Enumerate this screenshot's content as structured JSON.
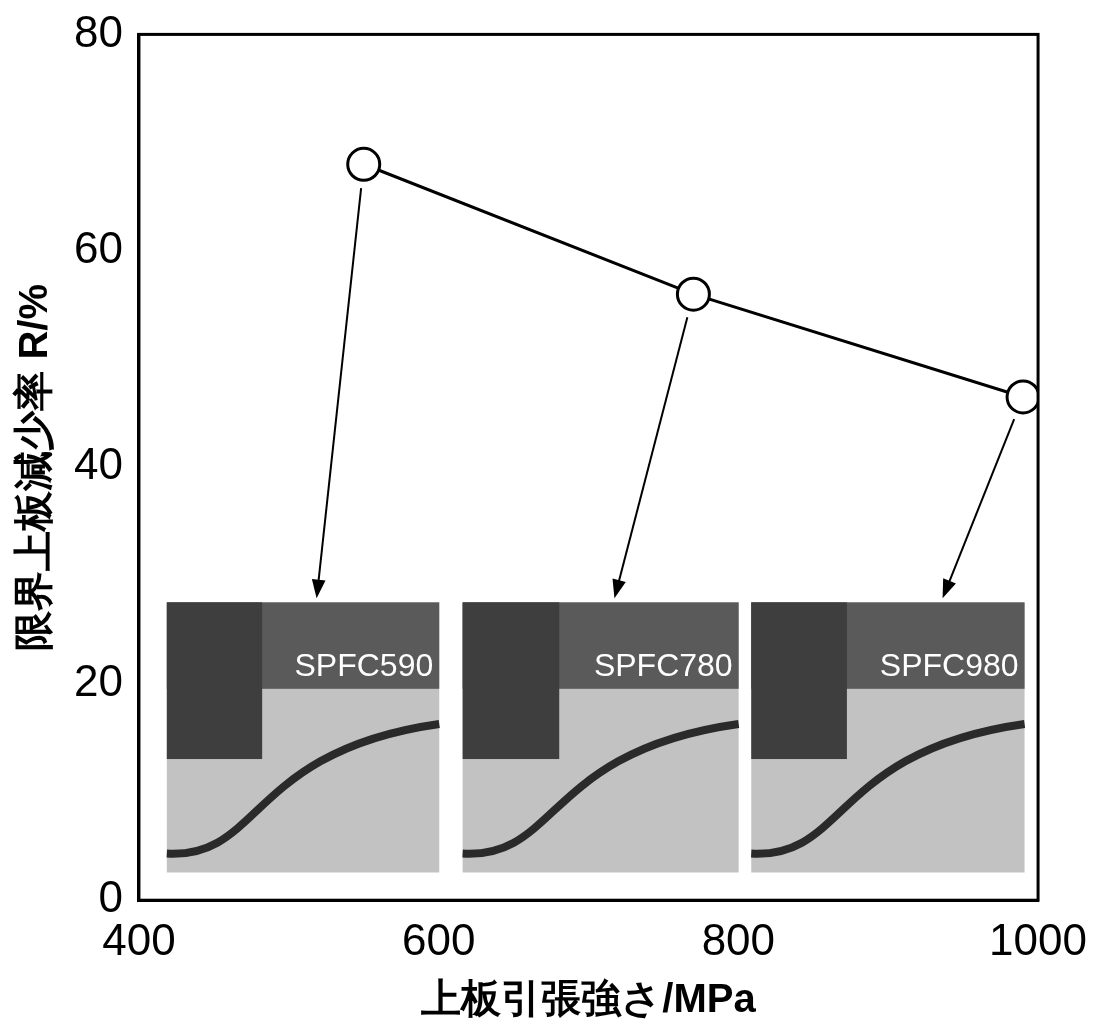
{
  "chart_data": {
    "type": "line",
    "x_label": "上板引張強さ/MPa",
    "y_label": "限界上板減少率 R/%",
    "x": [
      550,
      770,
      990
    ],
    "values": [
      68,
      56,
      46.5
    ],
    "point_labels": [
      "SPFC590",
      "SPFC780",
      "SPFC980"
    ],
    "color": "#000000",
    "marker": "circle",
    "line_style": "solid",
    "xlim": [
      400,
      1000
    ],
    "xticks": [
      400,
      600,
      800,
      1000
    ],
    "ylim": [
      0,
      80
    ],
    "yticks": [
      0,
      20,
      40,
      60,
      80
    ],
    "grid": false
  }
}
